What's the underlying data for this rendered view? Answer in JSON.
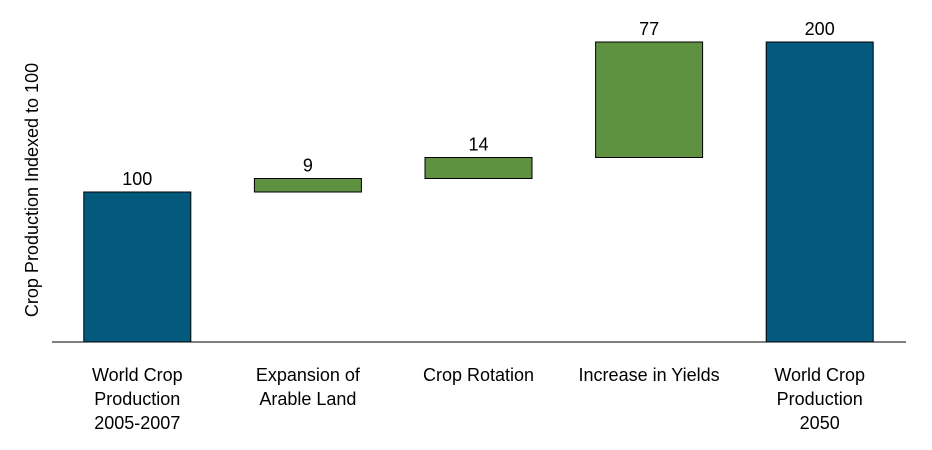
{
  "chart_data": {
    "type": "bar",
    "subtype": "waterfall",
    "ylabel": "Crop Production Indexed to 100",
    "ylim": [
      0,
      200
    ],
    "grid": false,
    "categories": [
      [
        "World Crop",
        "Production",
        "2005-2007"
      ],
      [
        "Expansion of",
        "Arable Land"
      ],
      [
        "Crop Rotation"
      ],
      [
        "Increase in Yields"
      ],
      [
        "World Crop",
        "Production",
        "2050"
      ]
    ],
    "series": [
      {
        "values": [
          100,
          9,
          14,
          77,
          200
        ],
        "kinds": [
          "total",
          "increase",
          "increase",
          "increase",
          "total"
        ]
      }
    ],
    "value_labels": [
      "100",
      "9",
      "14",
      "77",
      "200"
    ],
    "colors": {
      "total": "#045a7c",
      "increase": "#5e9140",
      "outline": "#000000"
    }
  }
}
